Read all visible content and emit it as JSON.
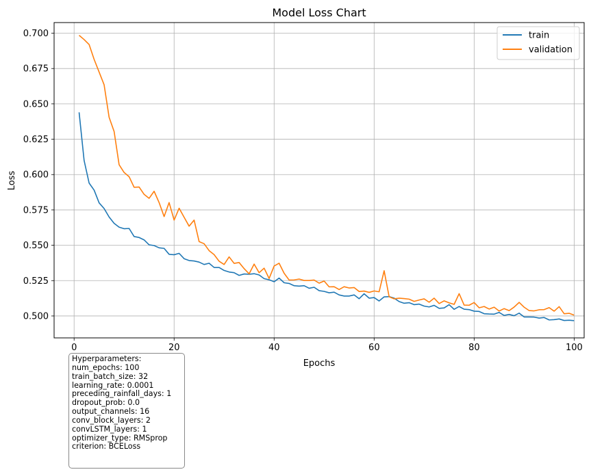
{
  "chart_data": {
    "type": "line",
    "title": "Model Loss Chart",
    "xlabel": "Epochs",
    "ylabel": "Loss",
    "xlim": [
      -4,
      102
    ],
    "ylim": [
      0.4845,
      0.7075
    ],
    "xticks": [
      0,
      20,
      40,
      60,
      80,
      100
    ],
    "yticks": [
      0.5,
      0.525,
      0.55,
      0.575,
      0.6,
      0.625,
      0.65,
      0.675,
      0.7
    ],
    "xtick_labels": [
      "0",
      "20",
      "40",
      "60",
      "80",
      "100"
    ],
    "ytick_labels": [
      "0.500",
      "0.525",
      "0.550",
      "0.575",
      "0.600",
      "0.625",
      "0.650",
      "0.675",
      "0.700"
    ],
    "grid": true,
    "legend_position": "top-right",
    "series": [
      {
        "name": "train",
        "color": "#1f77b4",
        "x": [
          1,
          2,
          3,
          4,
          5,
          6,
          7,
          8,
          9,
          10,
          11,
          12,
          13,
          14,
          15,
          16,
          17,
          18,
          19,
          20,
          21,
          22,
          23,
          24,
          25,
          26,
          27,
          28,
          29,
          30,
          31,
          32,
          33,
          34,
          35,
          36,
          37,
          38,
          39,
          40,
          41,
          42,
          43,
          44,
          45,
          46,
          47,
          48,
          49,
          50,
          51,
          52,
          53,
          54,
          55,
          56,
          57,
          58,
          59,
          60,
          61,
          62,
          63,
          64,
          65,
          66,
          67,
          68,
          69,
          70,
          71,
          72,
          73,
          74,
          75,
          76,
          77,
          78,
          79,
          80,
          81,
          82,
          83,
          84,
          85,
          86,
          87,
          88,
          89,
          90,
          91,
          92,
          93,
          94,
          95,
          96,
          97,
          98,
          99,
          100
        ],
        "values": [
          0.644,
          0.61,
          0.594,
          0.589,
          0.58,
          0.576,
          0.57,
          0.5655,
          0.5628,
          0.5617,
          0.5619,
          0.5562,
          0.5555,
          0.5538,
          0.5503,
          0.5498,
          0.5482,
          0.5478,
          0.5436,
          0.5433,
          0.5443,
          0.5405,
          0.5392,
          0.5389,
          0.5381,
          0.5364,
          0.5373,
          0.5343,
          0.5343,
          0.5322,
          0.5311,
          0.5306,
          0.5287,
          0.5297,
          0.5295,
          0.5299,
          0.529,
          0.5264,
          0.5256,
          0.5242,
          0.5268,
          0.5235,
          0.523,
          0.5214,
          0.5211,
          0.5214,
          0.5196,
          0.5203,
          0.5179,
          0.5174,
          0.5164,
          0.5168,
          0.5149,
          0.5141,
          0.5141,
          0.5149,
          0.5122,
          0.5157,
          0.5126,
          0.513,
          0.5106,
          0.5135,
          0.5137,
          0.5126,
          0.5102,
          0.509,
          0.5094,
          0.508,
          0.5084,
          0.507,
          0.5064,
          0.5075,
          0.5054,
          0.5057,
          0.508,
          0.5047,
          0.5067,
          0.5048,
          0.5045,
          0.5034,
          0.5032,
          0.5016,
          0.5014,
          0.5013,
          0.5025,
          0.5004,
          0.5011,
          0.5002,
          0.502,
          0.4993,
          0.4993,
          0.4992,
          0.4985,
          0.4989,
          0.4972,
          0.4974,
          0.4979,
          0.4968,
          0.497,
          0.4967
        ]
      },
      {
        "name": "validation",
        "color": "#ff7f0e",
        "x": [
          1,
          2,
          3,
          4,
          5,
          6,
          7,
          8,
          9,
          10,
          11,
          12,
          13,
          14,
          15,
          16,
          17,
          18,
          19,
          20,
          21,
          22,
          23,
          24,
          25,
          26,
          27,
          28,
          29,
          30,
          31,
          32,
          33,
          34,
          35,
          36,
          37,
          38,
          39,
          40,
          41,
          42,
          43,
          44,
          45,
          46,
          47,
          48,
          49,
          50,
          51,
          52,
          53,
          54,
          55,
          56,
          57,
          58,
          59,
          60,
          61,
          62,
          63,
          64,
          65,
          66,
          67,
          68,
          69,
          70,
          71,
          72,
          73,
          74,
          75,
          76,
          77,
          78,
          79,
          80,
          81,
          82,
          83,
          84,
          85,
          86,
          87,
          88,
          89,
          90,
          91,
          92,
          93,
          94,
          95,
          96,
          97,
          98,
          99,
          100
        ],
        "values": [
          0.6985,
          0.6955,
          0.692,
          0.6815,
          0.6725,
          0.6635,
          0.6405,
          0.6305,
          0.607,
          0.6015,
          0.5985,
          0.591,
          0.5912,
          0.586,
          0.5832,
          0.5882,
          0.5802,
          0.5703,
          0.5802,
          0.5678,
          0.5762,
          0.5698,
          0.5635,
          0.5678,
          0.5526,
          0.5511,
          0.5462,
          0.5434,
          0.5387,
          0.5364,
          0.5418,
          0.5372,
          0.5378,
          0.5335,
          0.5298,
          0.5367,
          0.5306,
          0.5338,
          0.5265,
          0.5353,
          0.5373,
          0.5302,
          0.5254,
          0.5255,
          0.5261,
          0.5251,
          0.5251,
          0.5254,
          0.5232,
          0.5247,
          0.5206,
          0.5207,
          0.5187,
          0.5207,
          0.5198,
          0.5201,
          0.5173,
          0.5176,
          0.5167,
          0.5177,
          0.5171,
          0.532,
          0.5136,
          0.5121,
          0.5126,
          0.5123,
          0.5119,
          0.5103,
          0.5113,
          0.5121,
          0.5097,
          0.5126,
          0.5088,
          0.5107,
          0.5093,
          0.5082,
          0.5158,
          0.5077,
          0.5076,
          0.5095,
          0.5058,
          0.5067,
          0.5049,
          0.5062,
          0.5035,
          0.5052,
          0.5038,
          0.5063,
          0.5096,
          0.5062,
          0.5038,
          0.5036,
          0.5044,
          0.5045,
          0.5059,
          0.5034,
          0.5066,
          0.5016,
          0.5019,
          0.5006
        ]
      }
    ]
  },
  "hyperparameters": {
    "heading": "Hyperparameters:",
    "lines": [
      "num_epochs: 100",
      "train_batch_size: 32",
      "learning_rate: 0.0001",
      "preceding_rainfall_days: 1",
      "dropout_prob: 0.0",
      "output_channels: 16",
      "conv_block_layers: 2",
      "convLSTM_layers: 1",
      "optimizer_type: RMSprop",
      "criterion: BCELoss"
    ]
  }
}
